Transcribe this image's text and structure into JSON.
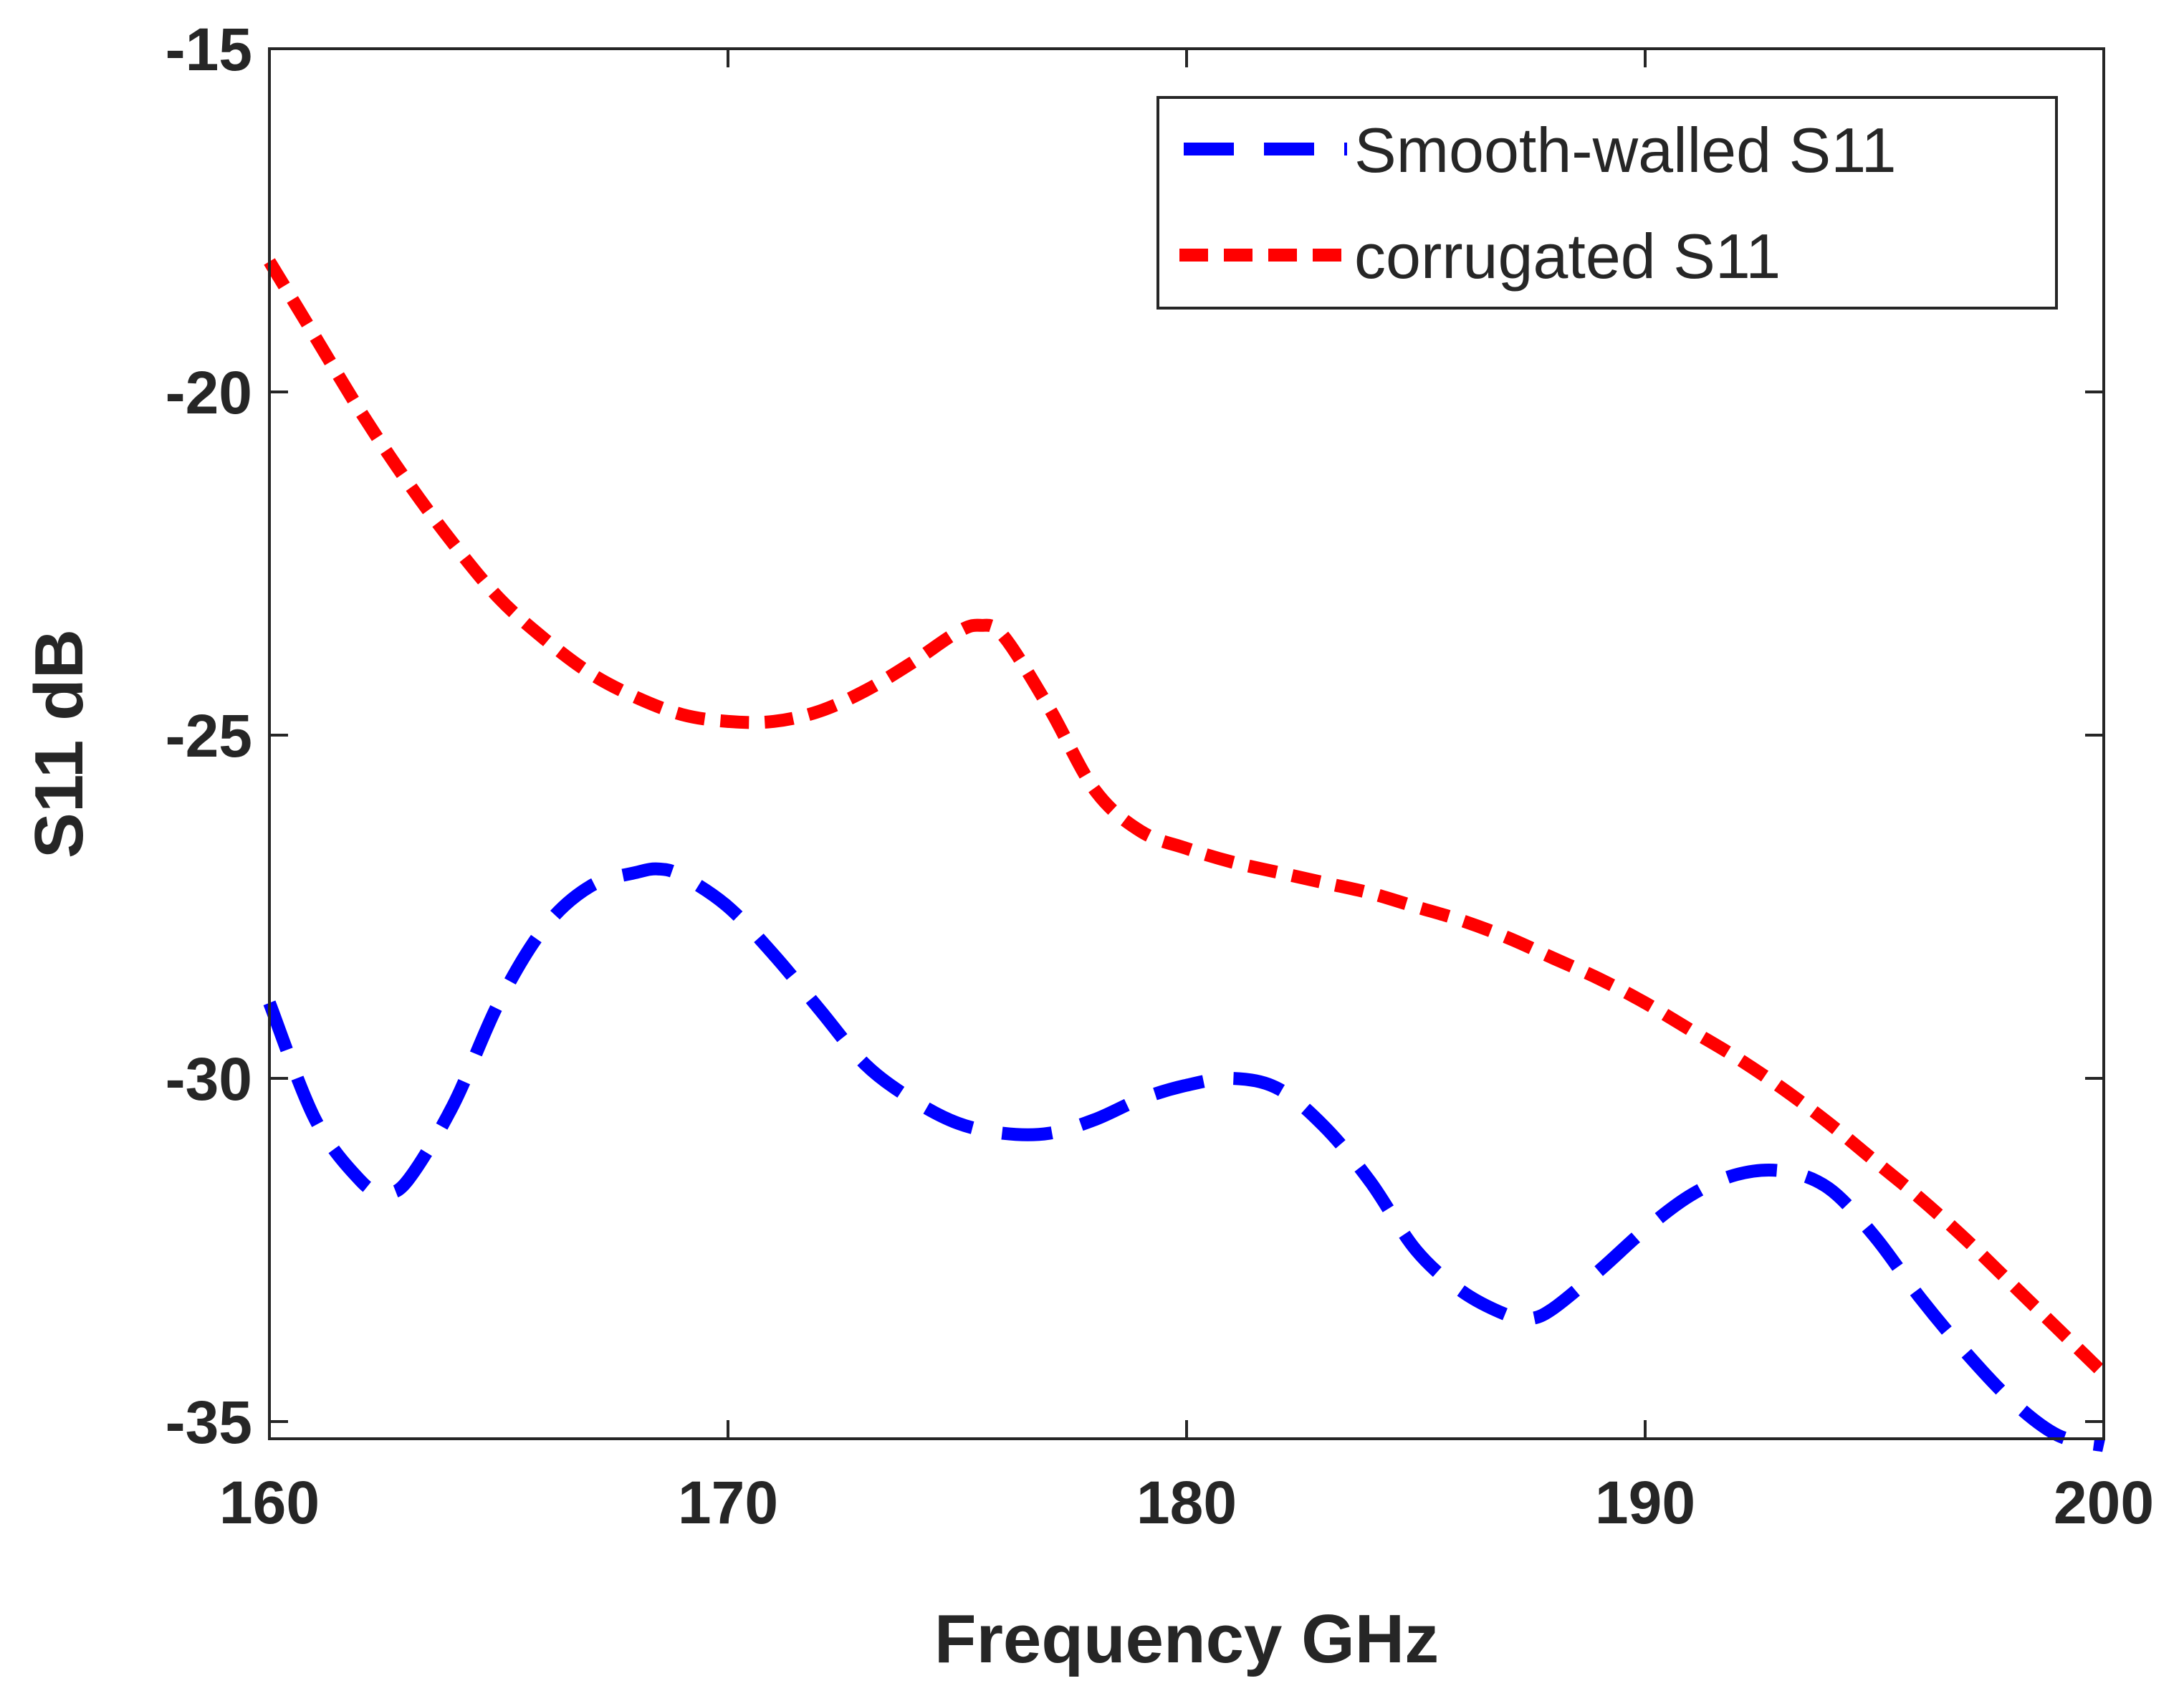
{
  "chart_data": {
    "type": "line",
    "title": "",
    "xlabel": "Frequency GHz",
    "ylabel": "S11 dB",
    "xlim": [
      160,
      200
    ],
    "ylim": [
      -35.25,
      -15
    ],
    "xticks": [
      160,
      170,
      180,
      190,
      200
    ],
    "yticks": [
      -35,
      -30,
      -25,
      -20,
      -15
    ],
    "xtick_labels": [
      "160",
      "170",
      "180",
      "190",
      "200"
    ],
    "ytick_labels": [
      "-35",
      "-30",
      "-25",
      "-20",
      "-15"
    ],
    "grid": false,
    "legend_position": "top-right",
    "series": [
      {
        "name": "Smooth-walled S11",
        "color": "#0000ff",
        "style": "dashed",
        "x": [
          160,
          161,
          162,
          162.5,
          163,
          164,
          165,
          166,
          167,
          168,
          168.5,
          169,
          170,
          171,
          172,
          173,
          174,
          175,
          176,
          177,
          178,
          179,
          180,
          181,
          182,
          183,
          184,
          185,
          186,
          187,
          187.5,
          188,
          189,
          190,
          191,
          192,
          193,
          194,
          195,
          196,
          197,
          198,
          199,
          200
        ],
        "y": [
          -28.9,
          -30.6,
          -31.5,
          -31.65,
          -31.5,
          -30.4,
          -28.9,
          -27.8,
          -27.2,
          -27.0,
          -26.95,
          -27.05,
          -27.5,
          -28.2,
          -29.0,
          -29.8,
          -30.3,
          -30.65,
          -30.8,
          -30.8,
          -30.6,
          -30.3,
          -30.1,
          -30.0,
          -30.15,
          -30.7,
          -31.5,
          -32.5,
          -33.1,
          -33.45,
          -33.5,
          -33.35,
          -32.8,
          -32.2,
          -31.7,
          -31.4,
          -31.35,
          -31.6,
          -32.3,
          -33.2,
          -34.0,
          -34.7,
          -35.2,
          -35.35
        ]
      },
      {
        "name": "corrugated S11",
        "color": "#ff0000",
        "style": "dashed",
        "x": [
          160,
          161,
          162,
          163,
          164,
          165,
          166,
          167,
          168,
          169,
          170,
          171,
          172,
          173,
          174,
          175,
          175.5,
          176,
          177,
          178,
          179,
          180,
          181,
          182,
          183,
          184,
          185,
          186,
          187,
          188,
          189,
          190,
          191,
          192,
          193,
          194,
          195,
          196,
          197,
          198,
          199,
          200
        ],
        "y": [
          -18.1,
          -19.2,
          -20.3,
          -21.3,
          -22.2,
          -23.0,
          -23.6,
          -24.1,
          -24.45,
          -24.7,
          -24.8,
          -24.8,
          -24.65,
          -24.35,
          -23.95,
          -23.5,
          -23.4,
          -23.55,
          -24.6,
          -25.8,
          -26.4,
          -26.65,
          -26.85,
          -27.0,
          -27.15,
          -27.3,
          -27.5,
          -27.7,
          -27.95,
          -28.25,
          -28.55,
          -28.9,
          -29.3,
          -29.7,
          -30.15,
          -30.65,
          -31.2,
          -31.75,
          -32.35,
          -33.0,
          -33.65,
          -34.3
        ]
      }
    ]
  }
}
